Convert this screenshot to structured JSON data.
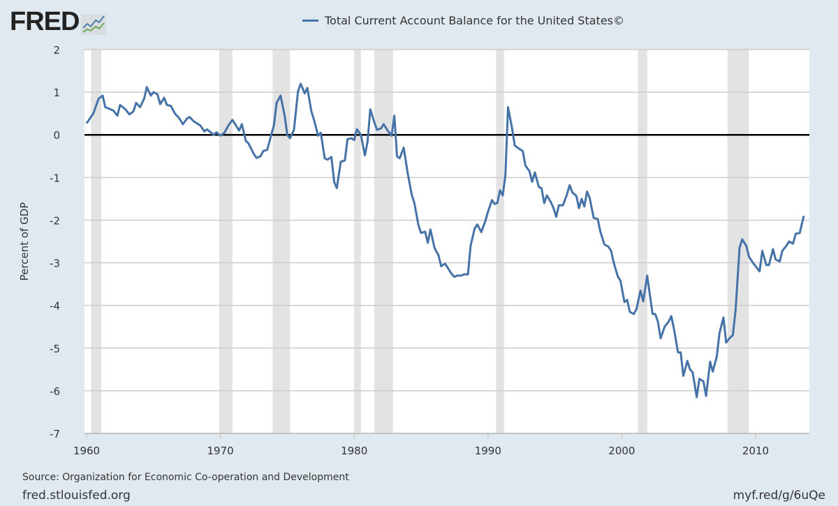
{
  "logo": {
    "text": "FRED"
  },
  "footer": {
    "source": "Source: Organization for Economic Co-operation and Development",
    "site": "fred.stlouisfed.org",
    "short_link": "myf.red/g/6uQe"
  },
  "colors": {
    "series": "#4572a7",
    "recession": "#e3e3e3",
    "background": "#e1e9f0",
    "zero_line": "#000000"
  },
  "chart_data": {
    "type": "line",
    "title": "",
    "xlabel": "",
    "ylabel": "Percent of GDP",
    "xlim": [
      1959.85,
      2014.0
    ],
    "ylim": [
      -7,
      2
    ],
    "grid": true,
    "legend_position": "top-center",
    "x_ticks": [
      1960,
      1970,
      1980,
      1990,
      2000,
      2010
    ],
    "y_ticks": [
      2,
      1,
      0,
      -1,
      -2,
      -3,
      -4,
      -5,
      -6,
      -7
    ],
    "recessions": [
      [
        1960.33,
        1961.1
      ],
      [
        1969.9,
        1970.9
      ],
      [
        1973.9,
        1975.2
      ],
      [
        1980.0,
        1980.5
      ],
      [
        1981.5,
        1982.9
      ],
      [
        1990.6,
        1991.2
      ],
      [
        2001.2,
        2001.9
      ],
      [
        2007.9,
        2009.5
      ]
    ],
    "series": [
      {
        "name": "Total Current Account Balance for the United States©",
        "points": [
          [
            1960.0,
            0.27
          ],
          [
            1960.5,
            0.5
          ],
          [
            1960.9,
            0.85
          ],
          [
            1961.2,
            0.92
          ],
          [
            1961.4,
            0.65
          ],
          [
            1962.0,
            0.57
          ],
          [
            1962.3,
            0.45
          ],
          [
            1962.5,
            0.7
          ],
          [
            1962.9,
            0.6
          ],
          [
            1963.2,
            0.48
          ],
          [
            1963.5,
            0.55
          ],
          [
            1963.7,
            0.75
          ],
          [
            1964.0,
            0.65
          ],
          [
            1964.3,
            0.85
          ],
          [
            1964.5,
            1.12
          ],
          [
            1964.8,
            0.92
          ],
          [
            1965.0,
            1.0
          ],
          [
            1965.3,
            0.95
          ],
          [
            1965.5,
            0.72
          ],
          [
            1965.8,
            0.87
          ],
          [
            1966.0,
            0.7
          ],
          [
            1966.3,
            0.68
          ],
          [
            1966.6,
            0.5
          ],
          [
            1966.9,
            0.4
          ],
          [
            1967.2,
            0.25
          ],
          [
            1967.5,
            0.38
          ],
          [
            1967.7,
            0.42
          ],
          [
            1968.0,
            0.32
          ],
          [
            1968.5,
            0.22
          ],
          [
            1968.8,
            0.08
          ],
          [
            1969.0,
            0.13
          ],
          [
            1969.5,
            0.0
          ],
          [
            1969.7,
            0.06
          ],
          [
            1970.0,
            -0.02
          ],
          [
            1970.3,
            0.05
          ],
          [
            1970.6,
            0.22
          ],
          [
            1970.9,
            0.35
          ],
          [
            1971.2,
            0.2
          ],
          [
            1971.4,
            0.1
          ],
          [
            1971.6,
            0.25
          ],
          [
            1971.9,
            -0.14
          ],
          [
            1972.1,
            -0.2
          ],
          [
            1972.5,
            -0.45
          ],
          [
            1972.7,
            -0.54
          ],
          [
            1973.0,
            -0.5
          ],
          [
            1973.2,
            -0.38
          ],
          [
            1973.5,
            -0.35
          ],
          [
            1973.8,
            0.0
          ],
          [
            1974.0,
            0.22
          ],
          [
            1974.2,
            0.75
          ],
          [
            1974.5,
            0.92
          ],
          [
            1974.8,
            0.45
          ],
          [
            1975.0,
            0.0
          ],
          [
            1975.2,
            -0.08
          ],
          [
            1975.5,
            0.12
          ],
          [
            1975.8,
            1.02
          ],
          [
            1976.0,
            1.2
          ],
          [
            1976.3,
            0.97
          ],
          [
            1976.5,
            1.1
          ],
          [
            1976.8,
            0.55
          ],
          [
            1977.0,
            0.35
          ],
          [
            1977.3,
            -0.02
          ],
          [
            1977.5,
            0.05
          ],
          [
            1977.8,
            -0.55
          ],
          [
            1978.0,
            -0.58
          ],
          [
            1978.3,
            -0.52
          ],
          [
            1978.5,
            -1.1
          ],
          [
            1978.7,
            -1.25
          ],
          [
            1979.0,
            -0.63
          ],
          [
            1979.3,
            -0.6
          ],
          [
            1979.5,
            -0.1
          ],
          [
            1979.8,
            -0.08
          ],
          [
            1980.0,
            -0.12
          ],
          [
            1980.2,
            0.13
          ],
          [
            1980.5,
            0.0
          ],
          [
            1980.8,
            -0.48
          ],
          [
            1981.0,
            -0.15
          ],
          [
            1981.2,
            0.6
          ],
          [
            1981.5,
            0.3
          ],
          [
            1981.7,
            0.12
          ],
          [
            1982.0,
            0.15
          ],
          [
            1982.2,
            0.25
          ],
          [
            1982.5,
            0.1
          ],
          [
            1982.8,
            -0.02
          ],
          [
            1983.0,
            0.45
          ],
          [
            1983.2,
            -0.5
          ],
          [
            1983.4,
            -0.55
          ],
          [
            1983.7,
            -0.3
          ],
          [
            1984.0,
            -0.9
          ],
          [
            1984.3,
            -1.4
          ],
          [
            1984.5,
            -1.6
          ],
          [
            1984.8,
            -2.12
          ],
          [
            1985.0,
            -2.3
          ],
          [
            1985.3,
            -2.27
          ],
          [
            1985.5,
            -2.53
          ],
          [
            1985.7,
            -2.22
          ],
          [
            1986.0,
            -2.65
          ],
          [
            1986.3,
            -2.82
          ],
          [
            1986.5,
            -3.08
          ],
          [
            1986.8,
            -3.02
          ],
          [
            1987.0,
            -3.12
          ],
          [
            1987.3,
            -3.27
          ],
          [
            1987.5,
            -3.33
          ],
          [
            1987.7,
            -3.3
          ],
          [
            1988.0,
            -3.3
          ],
          [
            1988.2,
            -3.27
          ],
          [
            1988.5,
            -3.27
          ],
          [
            1988.7,
            -2.6
          ],
          [
            1989.0,
            -2.2
          ],
          [
            1989.2,
            -2.1
          ],
          [
            1989.5,
            -2.28
          ],
          [
            1989.8,
            -2.02
          ],
          [
            1990.0,
            -1.8
          ],
          [
            1990.3,
            -1.53
          ],
          [
            1990.5,
            -1.62
          ],
          [
            1990.7,
            -1.6
          ],
          [
            1990.9,
            -1.3
          ],
          [
            1991.1,
            -1.42
          ],
          [
            1991.3,
            -0.95
          ],
          [
            1991.5,
            0.65
          ],
          [
            1991.8,
            0.15
          ],
          [
            1992.0,
            -0.25
          ],
          [
            1992.3,
            -0.32
          ],
          [
            1992.6,
            -0.38
          ],
          [
            1992.8,
            -0.72
          ],
          [
            1993.1,
            -0.85
          ],
          [
            1993.3,
            -1.1
          ],
          [
            1993.5,
            -0.88
          ],
          [
            1993.8,
            -1.22
          ],
          [
            1994.0,
            -1.25
          ],
          [
            1994.2,
            -1.6
          ],
          [
            1994.4,
            -1.42
          ],
          [
            1994.7,
            -1.58
          ],
          [
            1994.9,
            -1.72
          ],
          [
            1995.1,
            -1.92
          ],
          [
            1995.3,
            -1.65
          ],
          [
            1995.6,
            -1.65
          ],
          [
            1995.9,
            -1.4
          ],
          [
            1996.1,
            -1.18
          ],
          [
            1996.3,
            -1.35
          ],
          [
            1996.6,
            -1.43
          ],
          [
            1996.8,
            -1.72
          ],
          [
            1997.0,
            -1.5
          ],
          [
            1997.2,
            -1.68
          ],
          [
            1997.4,
            -1.33
          ],
          [
            1997.6,
            -1.48
          ],
          [
            1997.9,
            -1.95
          ],
          [
            1998.2,
            -1.97
          ],
          [
            1998.4,
            -2.27
          ],
          [
            1998.7,
            -2.57
          ],
          [
            1999.0,
            -2.62
          ],
          [
            1999.2,
            -2.72
          ],
          [
            1999.4,
            -3.0
          ],
          [
            1999.7,
            -3.32
          ],
          [
            1999.9,
            -3.42
          ],
          [
            2000.2,
            -3.92
          ],
          [
            2000.4,
            -3.87
          ],
          [
            2000.6,
            -4.15
          ],
          [
            2000.9,
            -4.2
          ],
          [
            2001.1,
            -4.08
          ],
          [
            2001.4,
            -3.65
          ],
          [
            2001.6,
            -3.9
          ],
          [
            2001.9,
            -3.3
          ],
          [
            2002.1,
            -3.75
          ],
          [
            2002.3,
            -4.2
          ],
          [
            2002.5,
            -4.2
          ],
          [
            2002.7,
            -4.38
          ],
          [
            2002.9,
            -4.77
          ],
          [
            2003.2,
            -4.5
          ],
          [
            2003.5,
            -4.38
          ],
          [
            2003.7,
            -4.25
          ],
          [
            2003.9,
            -4.55
          ],
          [
            2004.2,
            -5.1
          ],
          [
            2004.4,
            -5.1
          ],
          [
            2004.6,
            -5.65
          ],
          [
            2004.9,
            -5.3
          ],
          [
            2005.1,
            -5.5
          ],
          [
            2005.3,
            -5.57
          ],
          [
            2005.6,
            -6.15
          ],
          [
            2005.8,
            -5.72
          ],
          [
            2006.1,
            -5.78
          ],
          [
            2006.3,
            -6.12
          ],
          [
            2006.6,
            -5.32
          ],
          [
            2006.8,
            -5.55
          ],
          [
            2007.1,
            -5.2
          ],
          [
            2007.3,
            -4.65
          ],
          [
            2007.6,
            -4.28
          ],
          [
            2007.8,
            -4.87
          ],
          [
            2008.1,
            -4.75
          ],
          [
            2008.3,
            -4.7
          ],
          [
            2008.5,
            -4.12
          ],
          [
            2008.8,
            -2.65
          ],
          [
            2009.0,
            -2.45
          ],
          [
            2009.3,
            -2.6
          ],
          [
            2009.5,
            -2.85
          ],
          [
            2009.8,
            -3.0
          ],
          [
            2010.1,
            -3.12
          ],
          [
            2010.3,
            -3.2
          ],
          [
            2010.5,
            -2.72
          ],
          [
            2010.8,
            -3.05
          ],
          [
            2011.0,
            -3.05
          ],
          [
            2011.3,
            -2.68
          ],
          [
            2011.5,
            -2.92
          ],
          [
            2011.8,
            -2.97
          ],
          [
            2012.0,
            -2.72
          ],
          [
            2012.3,
            -2.6
          ],
          [
            2012.5,
            -2.5
          ],
          [
            2012.8,
            -2.55
          ],
          [
            2013.0,
            -2.32
          ],
          [
            2013.3,
            -2.3
          ],
          [
            2013.6,
            -1.9
          ]
        ]
      }
    ]
  }
}
